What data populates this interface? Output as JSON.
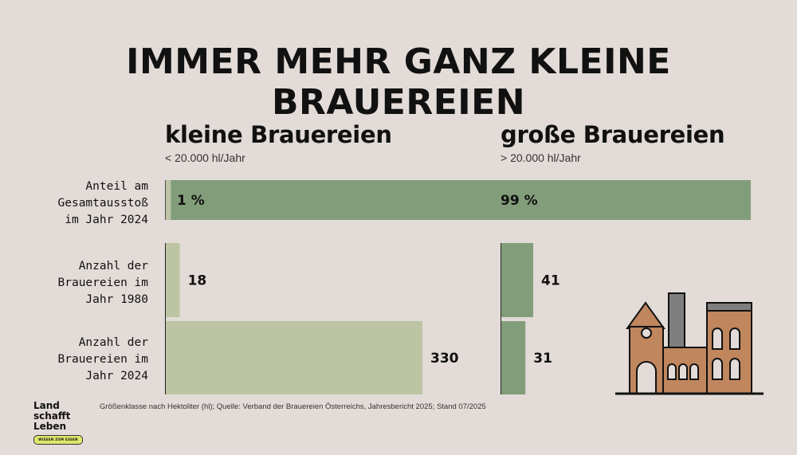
{
  "title": "IMMER MEHR GANZ KLEINE BRAUEREIEN",
  "columns": [
    {
      "title": "kleine Brauereien",
      "subtitle": "< 20.000 hl/Jahr"
    },
    {
      "title": "große Brauereien",
      "subtitle": "> 20.000 hl/Jahr"
    }
  ],
  "rows": [
    {
      "label": "Anteil am\nGesamtausstoß\nim Jahr 2024"
    },
    {
      "label": "Anzahl der\nBrauereien im\nJahr 1980"
    },
    {
      "label": "Anzahl der\nBrauereien im\nJahr 2024"
    }
  ],
  "footnote": "Größenklasse nach Hektoliter (hl); Quelle: Verband der Brauereien Österreichs, Jahresbericht 2025; Stand 07/2025",
  "logo": {
    "line1": "Land",
    "line2": "schafft",
    "line3": "Leben",
    "tagline": "WISSEN ZUM ESSEN"
  },
  "colors": {
    "small": "#bdc4a3",
    "large": "#829d7a",
    "background": "#e2dbd7",
    "building": "#c0865e",
    "chimney": "#7f7f7f"
  },
  "chart_data": [
    {
      "type": "bar",
      "title": "Anteil am Gesamtausstoß im Jahr 2024",
      "categories": [
        "kleine Brauereien",
        "große Brauereien"
      ],
      "values": [
        1,
        99
      ],
      "value_labels": [
        "1 %",
        "99 %"
      ],
      "unit": "%",
      "stacked": true
    },
    {
      "type": "bar",
      "title": "Anzahl der Brauereien im Jahr 1980",
      "categories": [
        "kleine Brauereien",
        "große Brauereien"
      ],
      "values": [
        18,
        41
      ],
      "value_labels": [
        "18",
        "41"
      ]
    },
    {
      "type": "bar",
      "title": "Anzahl der Brauereien im Jahr 2024",
      "categories": [
        "kleine Brauereien",
        "große Brauereien"
      ],
      "values": [
        330,
        31
      ],
      "value_labels": [
        "330",
        "31"
      ]
    }
  ]
}
